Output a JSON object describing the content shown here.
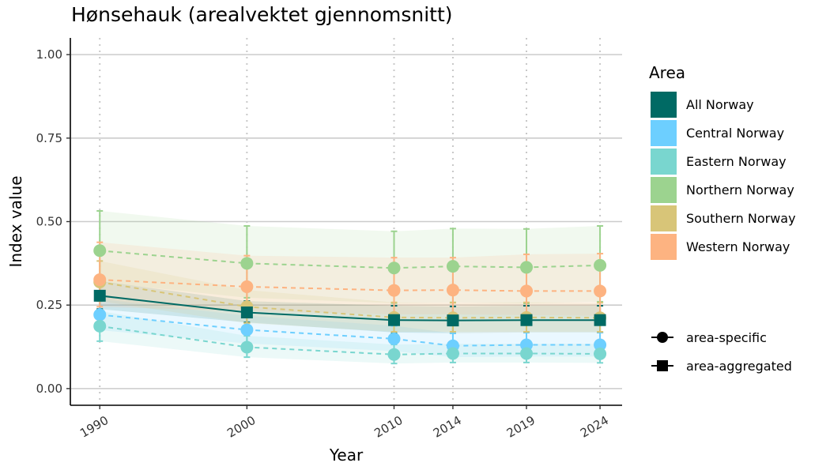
{
  "chart_data": {
    "type": "line",
    "title": "Hønsehauk (arealvektet gjennomsnitt)",
    "xlabel": "Year",
    "ylabel": "Index value",
    "x": [
      1990,
      2000,
      2010,
      2014,
      2019,
      2024
    ],
    "xlim": [
      1988,
      2025.5
    ],
    "ylim": [
      -0.05,
      1.05
    ],
    "yticks": [
      0.0,
      0.25,
      0.5,
      0.75,
      1.0
    ],
    "ytick_labels": [
      "0.00",
      "0.25",
      "0.50",
      "0.75",
      "1.00"
    ],
    "legend_title": "Area",
    "legend_position": "right",
    "grid": "horizontal major lines, vertical dotted lines at survey years",
    "shape_legend": [
      {
        "label": "area-specific",
        "shape": "circle"
      },
      {
        "label": "area-aggregated",
        "shape": "square"
      }
    ],
    "series": [
      {
        "name": "All Norway",
        "color": "#006a64",
        "marker": "square",
        "line": "solid",
        "values": [
          0.278,
          0.228,
          0.205,
          0.204,
          0.205,
          0.205
        ],
        "lower": [
          0.238,
          0.198,
          0.168,
          0.166,
          0.168,
          0.168
        ],
        "upper": [
          0.322,
          0.262,
          0.248,
          0.246,
          0.248,
          0.248
        ]
      },
      {
        "name": "Central Norway",
        "color": "#6dcfff",
        "marker": "circle",
        "line": "dashed",
        "values": [
          0.221,
          0.176,
          0.149,
          0.128,
          0.131,
          0.131
        ],
        "lower": [
          0.175,
          0.135,
          0.112,
          0.094,
          0.096,
          0.096
        ],
        "upper": [
          0.268,
          0.218,
          0.188,
          0.166,
          0.168,
          0.168
        ]
      },
      {
        "name": "Eastern Norway",
        "color": "#79d6cf",
        "marker": "circle",
        "line": "dashed",
        "values": [
          0.187,
          0.124,
          0.102,
          0.105,
          0.105,
          0.104
        ],
        "lower": [
          0.142,
          0.094,
          0.075,
          0.078,
          0.078,
          0.077
        ],
        "upper": [
          0.232,
          0.158,
          0.132,
          0.134,
          0.134,
          0.134
        ]
      },
      {
        "name": "Northern Norway",
        "color": "#9cd38f",
        "marker": "circle",
        "line": "dashed",
        "values": [
          0.413,
          0.375,
          0.361,
          0.366,
          0.363,
          0.369
        ],
        "lower": [
          0.318,
          0.272,
          0.256,
          0.258,
          0.255,
          0.26
        ],
        "upper": [
          0.532,
          0.487,
          0.471,
          0.479,
          0.478,
          0.487
        ]
      },
      {
        "name": "Southern Norway",
        "color": "#d8c578",
        "marker": "circle",
        "line": "dashed",
        "values": [
          0.319,
          0.245,
          0.213,
          0.212,
          0.213,
          0.212
        ],
        "lower": [
          0.262,
          0.196,
          0.17,
          0.17,
          0.17,
          0.17
        ],
        "upper": [
          0.382,
          0.295,
          0.258,
          0.257,
          0.258,
          0.257
        ]
      },
      {
        "name": "Western Norway",
        "color": "#fdb381",
        "marker": "circle",
        "line": "dashed",
        "values": [
          0.326,
          0.305,
          0.294,
          0.295,
          0.292,
          0.292
        ],
        "lower": [
          0.245,
          0.232,
          0.222,
          0.222,
          0.22,
          0.218
        ],
        "upper": [
          0.438,
          0.398,
          0.392,
          0.392,
          0.402,
          0.404
        ]
      }
    ]
  }
}
